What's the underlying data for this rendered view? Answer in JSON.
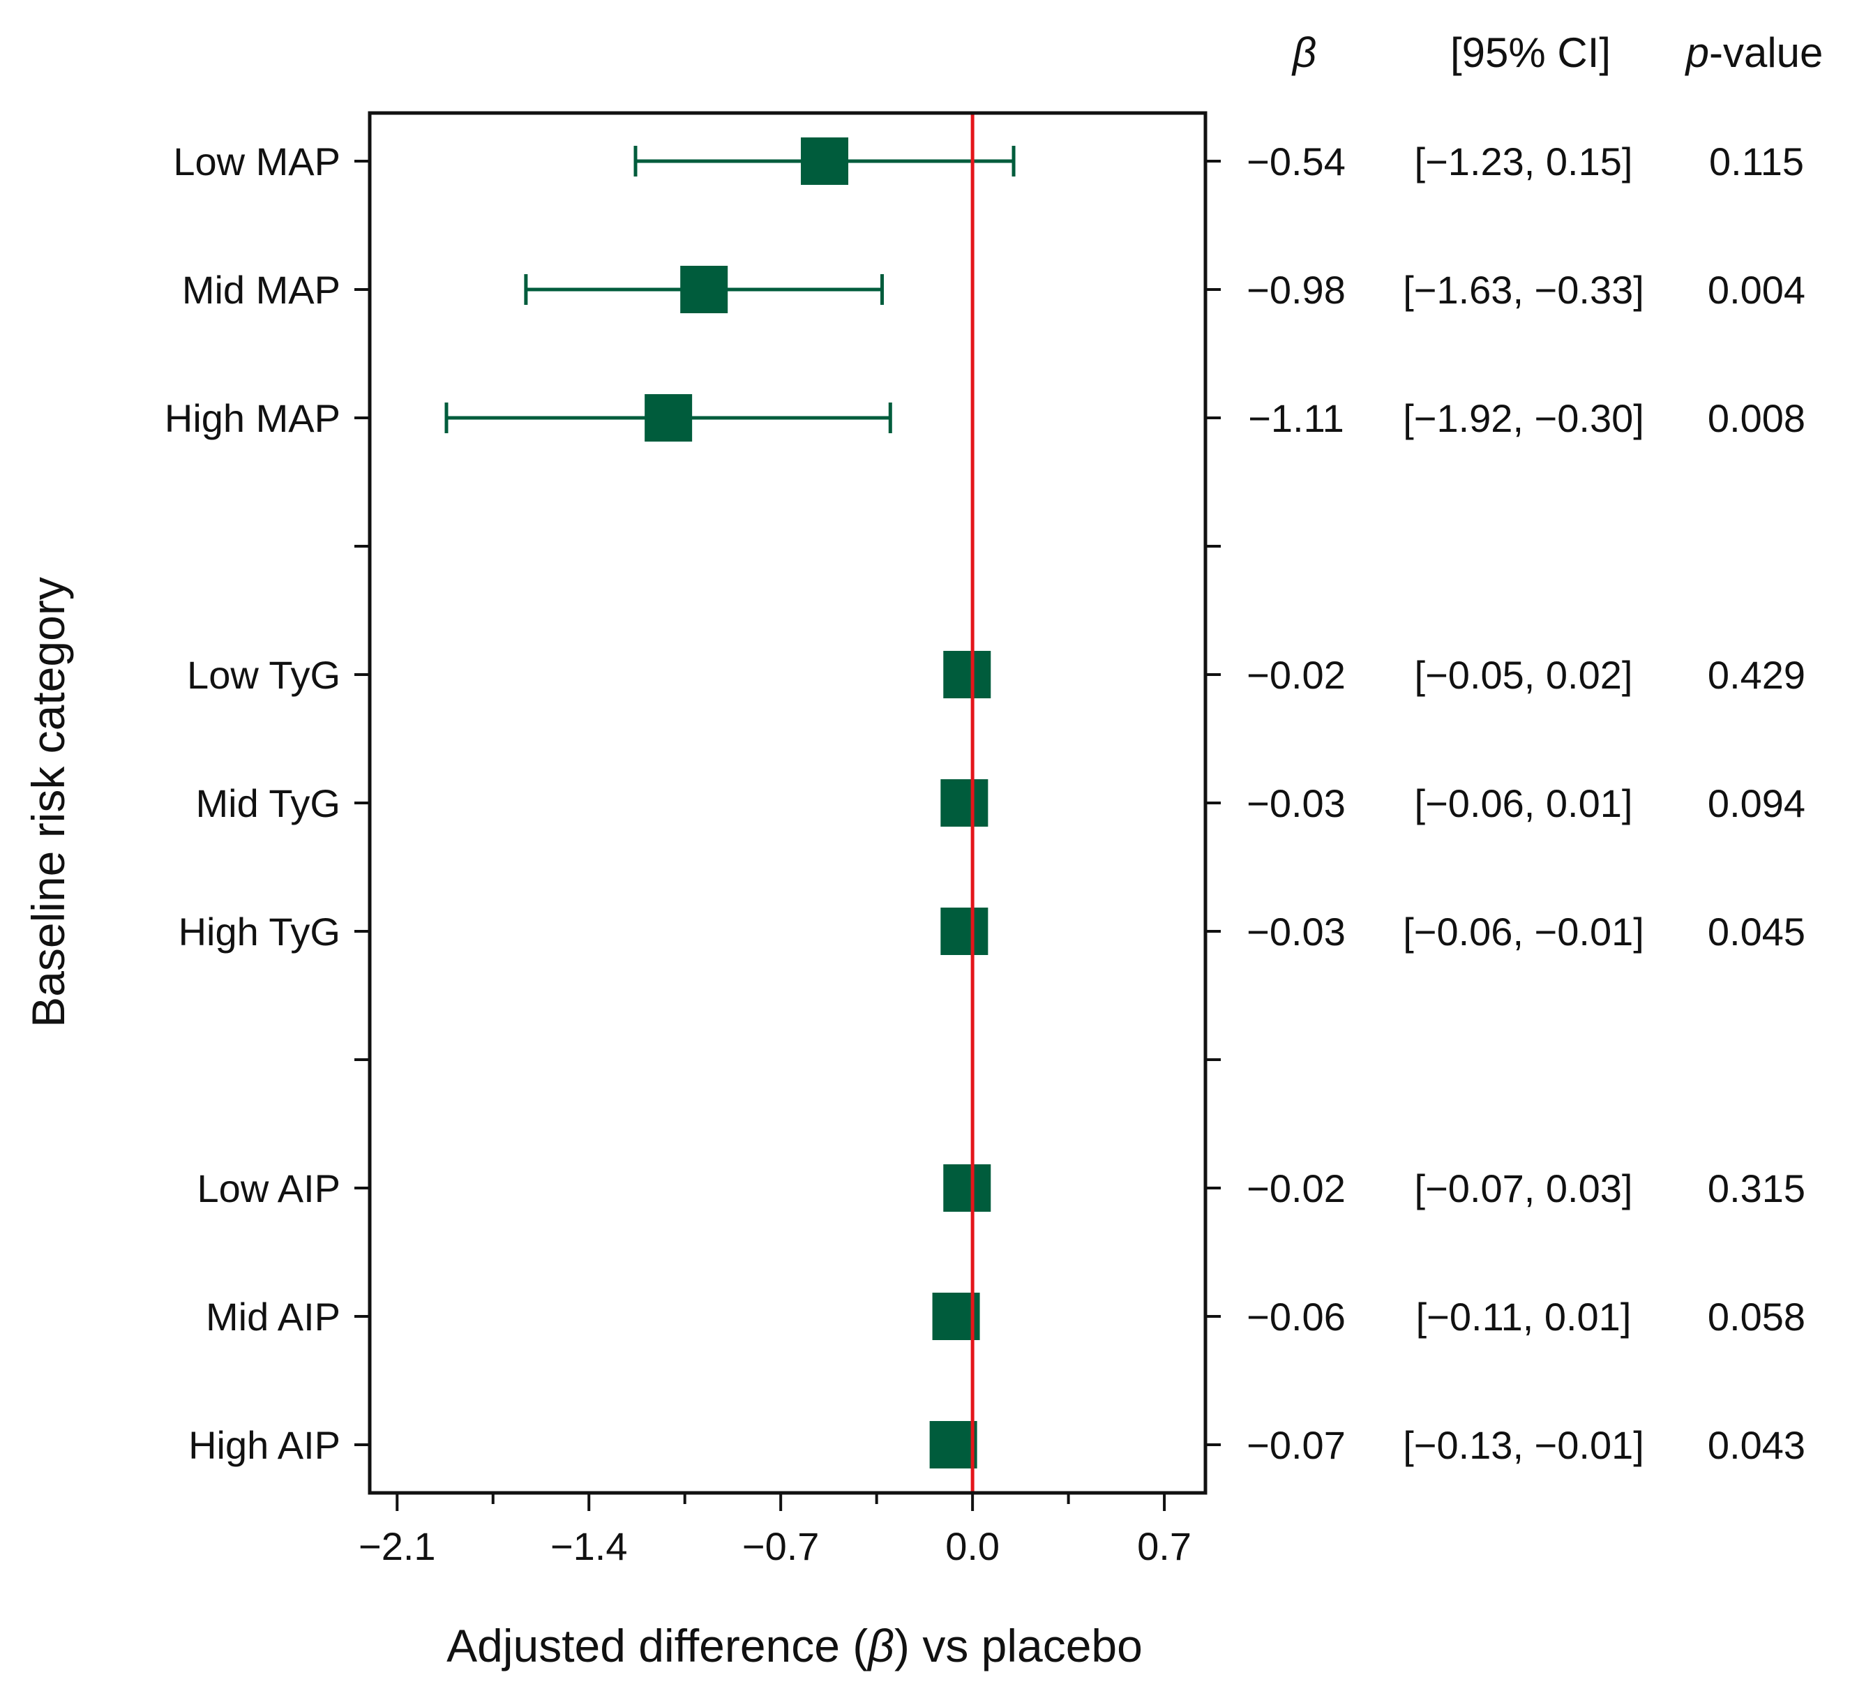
{
  "chart_data": {
    "type": "forest",
    "xlabel_parts": [
      "Adjusted difference (",
      "β",
      ") vs placebo"
    ],
    "ylabel": "Baseline risk category",
    "xlim": [
      -2.2,
      0.85
    ],
    "xticks": [
      -2.1,
      -1.4,
      -0.7,
      0.0,
      0.7
    ],
    "xtick_labels": [
      "−2.1",
      "−1.4",
      "−0.7",
      "0.0",
      "0.7"
    ],
    "xminor_ticks": [
      -1.75,
      -1.05,
      -0.35,
      0.35
    ],
    "reference_line": 0.0,
    "header": {
      "beta": "β",
      "ci": "[95% CI]",
      "p_italic": "p",
      "p_rest": "-value"
    },
    "rows": [
      {
        "label": "Low MAP",
        "beta": -0.54,
        "ci_low": -1.23,
        "ci_high": 0.15,
        "beta_text": "−0.54",
        "ci_text": "[−1.23, 0.15]",
        "p_text": "0.115"
      },
      {
        "label": "Mid MAP",
        "beta": -0.98,
        "ci_low": -1.63,
        "ci_high": -0.33,
        "beta_text": "−0.98",
        "ci_text": "[−1.63, −0.33]",
        "p_text": "0.004"
      },
      {
        "label": "High MAP",
        "beta": -1.11,
        "ci_low": -1.92,
        "ci_high": -0.3,
        "beta_text": "−1.11",
        "ci_text": "[−1.92, −0.30]",
        "p_text": "0.008"
      },
      null,
      {
        "label": "Low TyG",
        "beta": -0.02,
        "ci_low": -0.05,
        "ci_high": 0.02,
        "beta_text": "−0.02",
        "ci_text": "[−0.05, 0.02]",
        "p_text": "0.429"
      },
      {
        "label": "Mid TyG",
        "beta": -0.03,
        "ci_low": -0.06,
        "ci_high": 0.01,
        "beta_text": "−0.03",
        "ci_text": "[−0.06, 0.01]",
        "p_text": "0.094"
      },
      {
        "label": "High TyG",
        "beta": -0.03,
        "ci_low": -0.06,
        "ci_high": -0.01,
        "beta_text": "−0.03",
        "ci_text": "[−0.06, −0.01]",
        "p_text": "0.045"
      },
      null,
      {
        "label": "Low AIP",
        "beta": -0.02,
        "ci_low": -0.07,
        "ci_high": 0.03,
        "beta_text": "−0.02",
        "ci_text": "[−0.07, 0.03]",
        "p_text": "0.315"
      },
      {
        "label": "Mid AIP",
        "beta": -0.06,
        "ci_low": -0.11,
        "ci_high": 0.01,
        "beta_text": "−0.06",
        "ci_text": "[−0.11, 0.01]",
        "p_text": "0.058"
      },
      {
        "label": "High AIP",
        "beta": -0.07,
        "ci_low": -0.13,
        "ci_high": -0.01,
        "beta_text": "−0.07",
        "ci_text": "[−0.13, −0.01]",
        "p_text": "0.043"
      }
    ],
    "colors": {
      "marker": "#005C3C",
      "reference": "#E4161B",
      "axis": "#111111"
    }
  }
}
